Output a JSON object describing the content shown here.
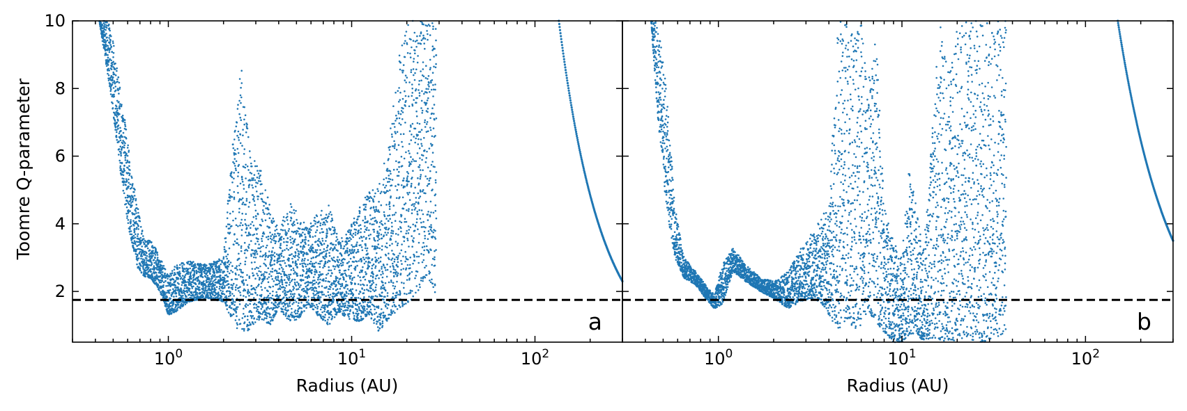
{
  "chart_data": {
    "type": "scatter",
    "shared_ylabel": "Toomre Q-parameter",
    "xscale": "log",
    "xlim": [
      0.3,
      300
    ],
    "ylim": [
      0.5,
      10
    ],
    "yticks": [
      2,
      4,
      6,
      8,
      10
    ],
    "xticks": [
      {
        "value": 1,
        "base": "10",
        "exp": "0"
      },
      {
        "value": 10,
        "base": "10",
        "exp": "1"
      },
      {
        "value": 100,
        "base": "10",
        "exp": "2"
      }
    ],
    "threshold": {
      "y": 1.75,
      "style": "dashed",
      "color": "#000000"
    },
    "marker_color": "#1f77b4",
    "panels": [
      {
        "label": "a",
        "xlabel": "Radius (AU)",
        "envelope": {
          "x": [
            0.42,
            0.48,
            0.55,
            0.6,
            0.68,
            0.75,
            0.8,
            0.9,
            1.0,
            1.1,
            1.3,
            1.6,
            2.0,
            2.2,
            2.5,
            2.8,
            3.2,
            3.6,
            4.0,
            4.6,
            5.2,
            5.8,
            6.5,
            7.5,
            8.5,
            9.5,
            11,
            12.5,
            14,
            16,
            18,
            20,
            23,
            26,
            29
          ],
          "lower": [
            10.0,
            8.0,
            5.5,
            4.0,
            2.7,
            2.4,
            2.4,
            2.0,
            1.3,
            1.4,
            1.7,
            1.8,
            1.7,
            1.2,
            0.7,
            0.9,
            1.2,
            1.0,
            1.5,
            1.1,
            1.2,
            1.6,
            1.3,
            1.0,
            1.4,
            1.2,
            1.1,
            1.3,
            0.8,
            1.2,
            1.4,
            1.6,
            2.0,
            2.5,
            1.7
          ],
          "upper": [
            10.0,
            10.0,
            8.0,
            6.5,
            4.5,
            3.5,
            3.6,
            3.0,
            2.5,
            2.8,
            2.9,
            2.8,
            3.0,
            6.0,
            8.7,
            6.0,
            5.7,
            4.5,
            3.8,
            4.7,
            4.2,
            3.9,
            4.3,
            4.6,
            3.5,
            3.8,
            4.5,
            5.0,
            5.1,
            6.5,
            9.0,
            10.0,
            10.0,
            10.0,
            10.0
          ]
        },
        "outer_curve": {
          "x": [
            135,
            300
          ],
          "y": [
            10.0,
            2.3
          ],
          "points": 160
        }
      },
      {
        "label": "b",
        "xlabel": "Radius (AU)",
        "envelope": {
          "x": [
            0.43,
            0.47,
            0.52,
            0.58,
            0.65,
            0.75,
            0.85,
            0.95,
            1.05,
            1.2,
            1.4,
            1.7,
            2.0,
            2.4,
            2.8,
            3.2,
            3.6,
            4.0,
            4.5,
            5.0,
            5.5,
            6.0,
            6.5,
            7.2,
            8.0,
            9.0,
            10,
            11,
            12,
            13,
            14.5,
            16,
            18,
            20,
            22,
            25,
            28,
            32,
            37
          ],
          "lower": [
            10.0,
            7.0,
            4.5,
            3.0,
            2.4,
            2.2,
            1.8,
            1.5,
            1.6,
            2.6,
            2.3,
            2.0,
            1.8,
            1.5,
            1.7,
            1.8,
            1.7,
            1.3,
            0.8,
            1.2,
            0.9,
            1.0,
            1.4,
            1.1,
            0.8,
            0.5,
            0.5,
            0.7,
            0.8,
            0.5,
            0.6,
            0.5,
            0.5,
            0.5,
            0.6,
            0.5,
            0.5,
            0.6,
            0.8
          ],
          "upper": [
            10.0,
            10.0,
            8.0,
            4.5,
            3.0,
            2.6,
            2.2,
            1.9,
            2.8,
            3.3,
            2.8,
            2.4,
            2.3,
            2.6,
            3.3,
            3.7,
            4.2,
            4.5,
            10.0,
            10.0,
            9.5,
            10.0,
            8.0,
            10.0,
            4.5,
            3.5,
            3.0,
            5.9,
            4.5,
            3.2,
            6.4,
            10.0,
            8.5,
            10.0,
            10.0,
            10.0,
            10.0,
            10.0,
            10.0
          ]
        },
        "outer_curve": {
          "x": [
            150,
            300
          ],
          "y": [
            10.0,
            3.5
          ],
          "points": 160
        }
      }
    ]
  }
}
